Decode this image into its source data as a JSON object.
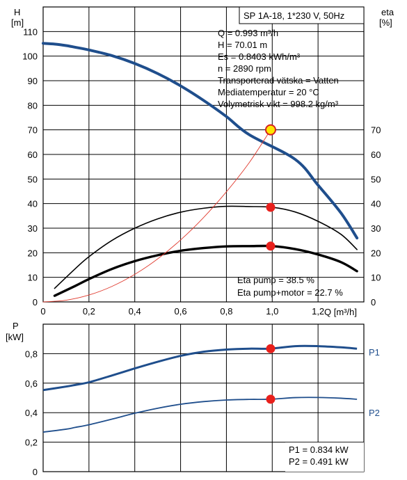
{
  "chart_data": [
    {
      "type": "line",
      "xlabel": "Q [m³/h]",
      "ylabel_left": [
        "H",
        "[m]"
      ],
      "ylabel_right": [
        "eta",
        "[%]"
      ],
      "xlim": [
        0,
        1.4
      ],
      "ylim_left": [
        0,
        120
      ],
      "ylim_right": [
        0,
        120
      ],
      "x_ticks": [
        "0",
        "0,2",
        "0,4",
        "0,6",
        "0,8",
        "1,0",
        "1,2"
      ],
      "x_tick_values": [
        0,
        0.2,
        0.4,
        0.6,
        0.8,
        1.0,
        1.2
      ],
      "y_ticks_left": [
        0,
        10,
        20,
        30,
        40,
        50,
        60,
        70,
        80,
        90,
        100,
        110
      ],
      "y_ticks_right": [
        0,
        10,
        20,
        30,
        40,
        50,
        60,
        70
      ],
      "title_box": "SP 1A-18, 1*230 V, 50Hz",
      "info": [
        "Q = 0.993 m³/h",
        "H = 70.01 m",
        "Es = 0.8403 kWh/m³",
        "n = 2890 rpm",
        "Transporterad vätska = Vatten",
        "Mediatemperatur = 20 °C",
        "Volymetrisk vikt = 998.2 kg/m³"
      ],
      "eta_text": [
        "Eta pump = 38.5 %",
        "Eta pump+motor = 22.7 %"
      ],
      "series": [
        {
          "key": "H",
          "color": "#1f4e8c",
          "points": [
            [
              0.0,
              105.2
            ],
            [
              0.05,
              104.9
            ],
            [
              0.1,
              104.3
            ],
            [
              0.14,
              103.6
            ],
            [
              0.2,
              102.5
            ],
            [
              0.3,
              100.2
            ],
            [
              0.4,
              97.0
            ],
            [
              0.5,
              92.9
            ],
            [
              0.6,
              87.9
            ],
            [
              0.7,
              82.0
            ],
            [
              0.8,
              75.4
            ],
            [
              0.9,
              68.0
            ],
            [
              1.0,
              70.0
            ],
            [
              1.1,
              58.0
            ],
            [
              1.2,
              47.5
            ],
            [
              1.3,
              36.2
            ],
            [
              1.37,
              26.0
            ]
          ]
        },
        {
          "key": "eta_pump",
          "color": "#000000",
          "points": [
            [
              0.05,
              5.5
            ],
            [
              0.14,
              13.5
            ],
            [
              0.2,
              18.4
            ],
            [
              0.3,
              25.0
            ],
            [
              0.4,
              30.0
            ],
            [
              0.5,
              33.8
            ],
            [
              0.6,
              36.5
            ],
            [
              0.7,
              38.1
            ],
            [
              0.8,
              38.9
            ],
            [
              0.9,
              38.8
            ],
            [
              1.0,
              38.5
            ],
            [
              1.1,
              36.6
            ],
            [
              1.2,
              32.8
            ],
            [
              1.3,
              27.5
            ],
            [
              1.37,
              21.3
            ]
          ]
        },
        {
          "key": "eta_total",
          "color": "#000000",
          "points": [
            [
              0.05,
              2.5
            ],
            [
              0.14,
              6.5
            ],
            [
              0.2,
              9.3
            ],
            [
              0.3,
              13.4
            ],
            [
              0.4,
              16.6
            ],
            [
              0.5,
              19.0
            ],
            [
              0.6,
              20.8
            ],
            [
              0.7,
              21.9
            ],
            [
              0.8,
              22.6
            ],
            [
              0.9,
              22.7
            ],
            [
              1.0,
              22.7
            ],
            [
              1.1,
              21.5
            ],
            [
              1.2,
              19.3
            ],
            [
              1.3,
              16.2
            ],
            [
              1.37,
              12.5
            ]
          ]
        },
        {
          "key": "system",
          "color": "#e03a2e",
          "points": [
            [
              0.0,
              0.0
            ],
            [
              0.1,
              0.7
            ],
            [
              0.2,
              2.8
            ],
            [
              0.3,
              6.3
            ],
            [
              0.4,
              11.2
            ],
            [
              0.5,
              17.5
            ],
            [
              0.6,
              25.2
            ],
            [
              0.7,
              34.3
            ],
            [
              0.8,
              44.8
            ],
            [
              0.9,
              56.7
            ],
            [
              0.993,
              70.0
            ]
          ]
        }
      ],
      "markers": [
        {
          "x": 0.993,
          "y": 70.01,
          "style": "duty"
        },
        {
          "x": 0.993,
          "y": 38.5,
          "style": "red"
        },
        {
          "x": 0.993,
          "y": 22.7,
          "style": "red"
        }
      ]
    },
    {
      "type": "line",
      "ylabel": [
        "P",
        "[kW]"
      ],
      "xlim": [
        0,
        1.4
      ],
      "ylim": [
        0,
        1.0
      ],
      "y_ticks": [
        "0",
        "0,2",
        "0,4",
        "0,6",
        "0,8"
      ],
      "y_tick_values": [
        0,
        0.2,
        0.4,
        0.6,
        0.8
      ],
      "info": [
        "P1 = 0.834 kW",
        "P2 = 0.491 kW"
      ],
      "series": [
        {
          "name": "P1",
          "color": "#1f4e8c",
          "points": [
            [
              0.0,
              0.553
            ],
            [
              0.1,
              0.577
            ],
            [
              0.14,
              0.588
            ],
            [
              0.2,
              0.606
            ],
            [
              0.3,
              0.652
            ],
            [
              0.4,
              0.7
            ],
            [
              0.5,
              0.745
            ],
            [
              0.6,
              0.785
            ],
            [
              0.7,
              0.813
            ],
            [
              0.8,
              0.828
            ],
            [
              0.9,
              0.834
            ],
            [
              0.993,
              0.834
            ],
            [
              1.1,
              0.851
            ],
            [
              1.2,
              0.851
            ],
            [
              1.3,
              0.843
            ],
            [
              1.37,
              0.834
            ]
          ]
        },
        {
          "name": "P2",
          "color": "#1f4e8c",
          "points": [
            [
              0.0,
              0.268
            ],
            [
              0.1,
              0.288
            ],
            [
              0.14,
              0.3
            ],
            [
              0.2,
              0.318
            ],
            [
              0.3,
              0.356
            ],
            [
              0.4,
              0.396
            ],
            [
              0.5,
              0.43
            ],
            [
              0.6,
              0.457
            ],
            [
              0.7,
              0.475
            ],
            [
              0.8,
              0.486
            ],
            [
              0.9,
              0.49
            ],
            [
              0.993,
              0.491
            ],
            [
              1.1,
              0.502
            ],
            [
              1.2,
              0.503
            ],
            [
              1.3,
              0.498
            ],
            [
              1.37,
              0.491
            ]
          ]
        }
      ],
      "markers": [
        {
          "x": 0.993,
          "y": 0.834,
          "style": "red"
        },
        {
          "x": 0.993,
          "y": 0.491,
          "style": "red"
        }
      ]
    }
  ]
}
